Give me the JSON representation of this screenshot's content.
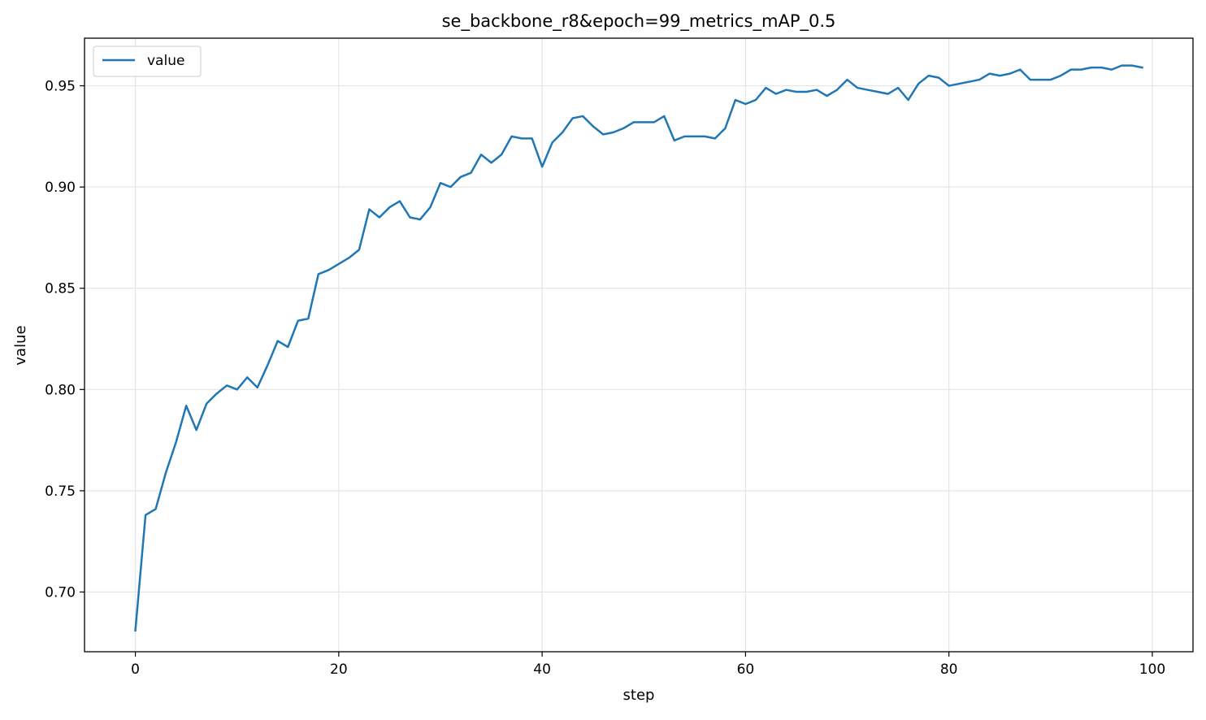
{
  "chart_data": {
    "type": "line",
    "title": "se_backbone_r8&epoch=99_metrics_mAP_0.5",
    "xlabel": "step",
    "ylabel": "value",
    "xlim": [
      -5,
      104
    ],
    "ylim": [
      0.6705,
      0.9735
    ],
    "grid": true,
    "legend_position": "top-left",
    "x_ticks": [
      0,
      20,
      40,
      60,
      80,
      100
    ],
    "x_tick_labels": [
      "0",
      "20",
      "40",
      "60",
      "80",
      "100"
    ],
    "y_ticks": [
      0.7,
      0.75,
      0.8,
      0.85,
      0.9,
      0.95
    ],
    "y_tick_labels": [
      "0.70",
      "0.75",
      "0.80",
      "0.85",
      "0.90",
      "0.95"
    ],
    "series": [
      {
        "name": "value",
        "color": "#1f77b4",
        "x": [
          0,
          1,
          2,
          3,
          4,
          5,
          6,
          7,
          8,
          9,
          10,
          11,
          12,
          13,
          14,
          15,
          16,
          17,
          18,
          19,
          20,
          21,
          22,
          23,
          24,
          25,
          26,
          27,
          28,
          29,
          30,
          31,
          32,
          33,
          34,
          35,
          36,
          37,
          38,
          39,
          40,
          41,
          42,
          43,
          44,
          45,
          46,
          47,
          48,
          49,
          50,
          51,
          52,
          53,
          54,
          55,
          56,
          57,
          58,
          59,
          60,
          61,
          62,
          63,
          64,
          65,
          66,
          67,
          68,
          69,
          70,
          71,
          72,
          73,
          74,
          75,
          76,
          77,
          78,
          79,
          80,
          81,
          82,
          83,
          84,
          85,
          86,
          87,
          88,
          89,
          90,
          91,
          92,
          93,
          94,
          95,
          96,
          97,
          98,
          99
        ],
        "values": [
          0.681,
          0.738,
          0.741,
          0.759,
          0.774,
          0.792,
          0.78,
          0.793,
          0.798,
          0.802,
          0.8,
          0.806,
          0.801,
          0.812,
          0.824,
          0.821,
          0.834,
          0.835,
          0.857,
          0.859,
          0.862,
          0.865,
          0.869,
          0.889,
          0.885,
          0.89,
          0.893,
          0.885,
          0.884,
          0.89,
          0.902,
          0.9,
          0.905,
          0.907,
          0.916,
          0.912,
          0.916,
          0.925,
          0.924,
          0.924,
          0.91,
          0.922,
          0.927,
          0.934,
          0.935,
          0.93,
          0.926,
          0.927,
          0.929,
          0.932,
          0.932,
          0.932,
          0.935,
          0.923,
          0.925,
          0.925,
          0.925,
          0.924,
          0.929,
          0.943,
          0.941,
          0.943,
          0.949,
          0.946,
          0.948,
          0.947,
          0.947,
          0.948,
          0.945,
          0.948,
          0.953,
          0.949,
          0.948,
          0.947,
          0.946,
          0.949,
          0.943,
          0.951,
          0.955,
          0.954,
          0.95,
          0.951,
          0.952,
          0.953,
          0.956,
          0.955,
          0.956,
          0.958,
          0.953,
          0.953,
          0.953,
          0.955,
          0.958,
          0.958,
          0.959,
          0.959,
          0.958,
          0.96,
          0.96,
          0.959
        ]
      }
    ]
  }
}
